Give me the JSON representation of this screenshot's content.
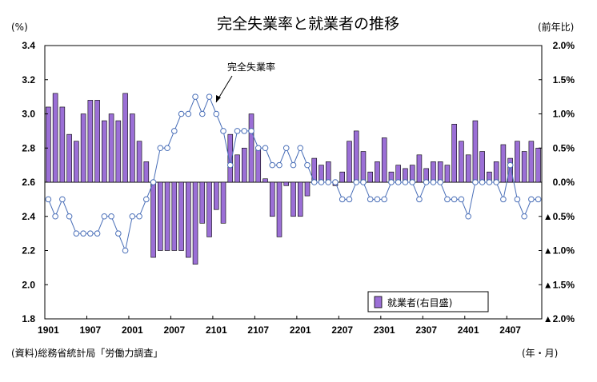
{
  "chart_data": {
    "type": "bar+line",
    "title": "完全失業率と就業者の推移",
    "left_axis": {
      "label": "(%)",
      "range": [
        1.8,
        3.4
      ],
      "ticks": [
        "3.4",
        "3.2",
        "3.0",
        "2.8",
        "2.6",
        "2.4",
        "2.2",
        "2.0",
        "1.8"
      ]
    },
    "right_axis": {
      "label": "(前年比)",
      "range": [
        -2.0,
        2.0
      ],
      "ticks": [
        "2.0%",
        "1.5%",
        "1.0%",
        "0.5%",
        "0.0%",
        "▲0.5%",
        "▲1.0%",
        "▲1.5%",
        "▲2.0%"
      ]
    },
    "x_axis": {
      "label": "(年・月)",
      "ticks": [
        "1901",
        "1907",
        "2001",
        "2007",
        "2101",
        "2107",
        "2201",
        "2207",
        "2301",
        "2307",
        "2401",
        "2407"
      ]
    },
    "legend": {
      "label": "就業者(右目盛)",
      "position": "bottom-right"
    },
    "annotation": "完全失業率",
    "source": "(資料)総務省統計局「労働力調査」",
    "grid": false,
    "colors": {
      "bar": "#9b6fd6",
      "line": "#4a6fb8"
    },
    "series": [
      {
        "name": "就業者(右目盛)",
        "kind": "bar",
        "axis": "right",
        "values": [
          1.1,
          1.3,
          1.1,
          0.7,
          0.6,
          1.0,
          1.2,
          1.2,
          0.9,
          1.0,
          0.9,
          1.3,
          1.0,
          0.6,
          0.3,
          -1.1,
          -1.0,
          -1.0,
          -1.0,
          -1.0,
          -1.1,
          -1.2,
          -0.6,
          -0.8,
          -0.4,
          -0.6,
          0.7,
          0.4,
          0.5,
          1.0,
          0.5,
          0.05,
          -0.5,
          -0.8,
          -0.05,
          -0.5,
          -0.5,
          -0.2,
          0.35,
          0.25,
          0.3,
          -0.05,
          0.15,
          0.6,
          0.75,
          0.45,
          0.15,
          0.3,
          0.65,
          0.15,
          0.25,
          0.2,
          0.25,
          0.4,
          0.2,
          0.3,
          0.3,
          0.25,
          0.85,
          0.6,
          0.4,
          0.9,
          0.45,
          0.15,
          0.3,
          0.55,
          0.35,
          0.6,
          0.45,
          0.6,
          0.5
        ]
      },
      {
        "name": "完全失業率",
        "kind": "line",
        "axis": "left",
        "values": [
          2.5,
          2.4,
          2.5,
          2.4,
          2.3,
          2.3,
          2.3,
          2.3,
          2.4,
          2.4,
          2.3,
          2.2,
          2.4,
          2.4,
          2.5,
          2.6,
          2.8,
          2.8,
          2.9,
          3.0,
          3.0,
          3.1,
          3.0,
          3.1,
          3.0,
          2.9,
          2.7,
          2.9,
          2.9,
          2.9,
          2.8,
          2.8,
          2.7,
          2.7,
          2.8,
          2.7,
          2.8,
          2.7,
          2.6,
          2.6,
          2.6,
          2.6,
          2.5,
          2.5,
          2.6,
          2.6,
          2.5,
          2.5,
          2.5,
          2.6,
          2.6,
          2.6,
          2.6,
          2.5,
          2.6,
          2.6,
          2.6,
          2.5,
          2.5,
          2.5,
          2.4,
          2.6,
          2.6,
          2.6,
          2.6,
          2.5,
          2.7,
          2.5,
          2.4,
          2.5,
          2.5
        ]
      }
    ]
  }
}
